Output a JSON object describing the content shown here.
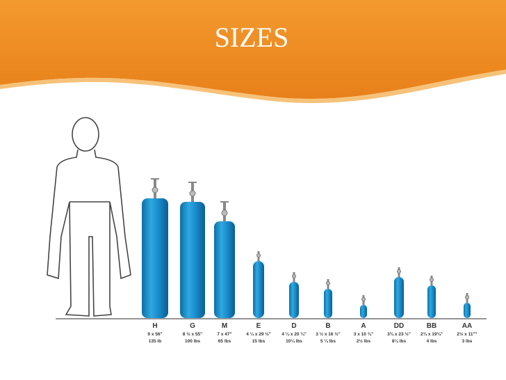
{
  "header": {
    "title": "SIZES"
  },
  "cylinders": [
    {
      "name": "H",
      "dimensions": "9 x 56\"",
      "weight": "135 lb"
    },
    {
      "name": "G",
      "dimensions": "8 ½ x 55\"",
      "weight": "100 lbs"
    },
    {
      "name": "M",
      "dimensions": "7 x 47\"",
      "weight": "65 lbs"
    },
    {
      "name": "E",
      "dimensions": "4 ¼ x 29 ½\"",
      "weight": "15 lbs"
    },
    {
      "name": "D",
      "dimensions": "4 ¼ x 20 ¾\"",
      "weight": "10¼ lbs"
    },
    {
      "name": "B",
      "dimensions": "3 ½ x 16 ½\"",
      "weight": "5 ¼ lbs"
    },
    {
      "name": "A",
      "dimensions": "3 x 10 ¾\"",
      "weight": "2½ lbs"
    },
    {
      "name": "DD",
      "dimensions": "3¾ x 23 ½\"",
      "weight": "8¼ lbs"
    },
    {
      "name": "BB",
      "dimensions": "2¾ x 19¾\"",
      "weight": "4 lbs"
    },
    {
      "name": "AA",
      "dimensions": "2½ x 11\"\"",
      "weight": "3 lbs"
    }
  ]
}
